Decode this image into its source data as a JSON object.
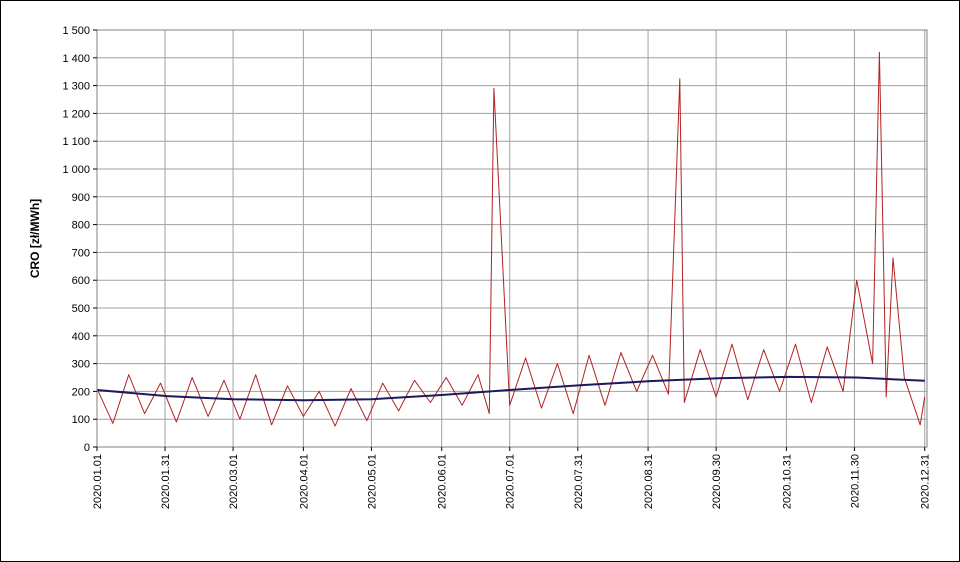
{
  "chart_data": {
    "type": "line",
    "ylabel": "CRO [zł/MWh]",
    "xlabel": "",
    "title": "",
    "ylim": [
      0,
      1500
    ],
    "y_ticks": [
      0,
      100,
      200,
      300,
      400,
      500,
      600,
      700,
      800,
      900,
      1000,
      1100,
      1200,
      1300,
      1400,
      1500
    ],
    "y_tick_labels": [
      "0",
      "100",
      "200",
      "300",
      "400",
      "500",
      "600",
      "700",
      "800",
      "900",
      "1 000",
      "1 100",
      "1 200",
      "1 300",
      "1 400",
      "1 500"
    ],
    "x_ticks": [
      "2020-01-01",
      "2020-01-31",
      "2020-03-01",
      "2020-04-01",
      "2020-05-01",
      "2020-06-01",
      "2020-07-01",
      "2020-07-31",
      "2020-08-31",
      "2020-09-30",
      "2020-10-31",
      "2020-11-30",
      "2020-12-31"
    ],
    "x_tick_labels": [
      "2020.01.01",
      "2020.01.31",
      "2020.03.01",
      "2020.04.01",
      "2020.05.01",
      "2020.06.01",
      "2020.07.01",
      "2020.07.31",
      "2020.08.31",
      "2020.09.30",
      "2020.10.31",
      "2020.11.30",
      "2020.12.31"
    ],
    "xlim": [
      "2020-01-01",
      "2021-01-01"
    ],
    "grid": true,
    "legend": "none",
    "series": [
      {
        "color": "#b22222",
        "x": [
          "2020-01-01",
          "2020-01-08",
          "2020-01-15",
          "2020-01-22",
          "2020-01-29",
          "2020-02-05",
          "2020-02-12",
          "2020-02-19",
          "2020-02-26",
          "2020-03-04",
          "2020-03-11",
          "2020-03-18",
          "2020-03-25",
          "2020-04-01",
          "2020-04-08",
          "2020-04-15",
          "2020-04-22",
          "2020-04-29",
          "2020-05-06",
          "2020-05-13",
          "2020-05-20",
          "2020-05-27",
          "2020-06-03",
          "2020-06-10",
          "2020-06-17",
          "2020-06-22",
          "2020-06-24",
          "2020-07-01",
          "2020-07-08",
          "2020-07-15",
          "2020-07-22",
          "2020-07-29",
          "2020-08-05",
          "2020-08-12",
          "2020-08-19",
          "2020-08-26",
          "2020-09-02",
          "2020-09-09",
          "2020-09-14",
          "2020-09-16",
          "2020-09-23",
          "2020-09-30",
          "2020-10-07",
          "2020-10-14",
          "2020-10-21",
          "2020-10-28",
          "2020-11-04",
          "2020-11-11",
          "2020-11-18",
          "2020-11-25",
          "2020-12-01",
          "2020-12-08",
          "2020-12-11",
          "2020-12-14",
          "2020-12-17",
          "2020-12-22",
          "2020-12-29",
          "2020-12-31"
        ],
        "y": [
          210,
          85,
          260,
          120,
          230,
          90,
          250,
          110,
          240,
          100,
          260,
          80,
          220,
          110,
          200,
          75,
          210,
          95,
          230,
          130,
          240,
          160,
          250,
          150,
          260,
          120,
          1290,
          150,
          320,
          140,
          300,
          120,
          330,
          150,
          340,
          200,
          330,
          190,
          1325,
          160,
          350,
          180,
          370,
          170,
          350,
          200,
          370,
          160,
          360,
          200,
          600,
          300,
          1420,
          180,
          680,
          250,
          80,
          180
        ]
      },
      {
        "color": "#1a1a5e",
        "x": [
          "2020-01-01",
          "2020-02-01",
          "2020-03-01",
          "2020-04-01",
          "2020-05-01",
          "2020-06-01",
          "2020-07-01",
          "2020-08-01",
          "2020-09-01",
          "2020-10-01",
          "2020-11-01",
          "2020-12-01",
          "2020-12-31"
        ],
        "y": [
          205,
          183,
          172,
          168,
          172,
          187,
          205,
          222,
          237,
          247,
          252,
          250,
          238
        ]
      }
    ]
  }
}
